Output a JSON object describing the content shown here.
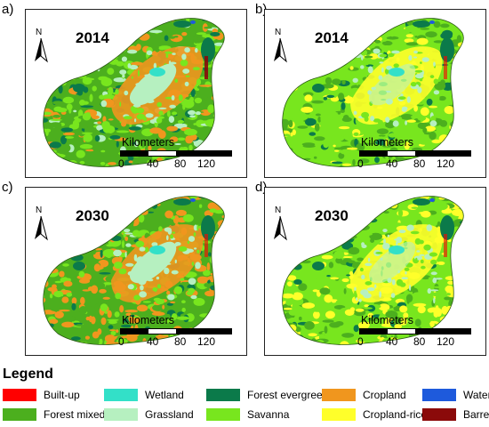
{
  "panels": [
    {
      "label": "a)",
      "year": "2014",
      "variant": "a"
    },
    {
      "label": "b)",
      "year": "2014",
      "variant": "b"
    },
    {
      "label": "c)",
      "year": "2030",
      "variant": "c"
    },
    {
      "label": "d)",
      "year": "2030",
      "variant": "d"
    }
  ],
  "north_label": "N",
  "scalebar": {
    "title": "Kilometers",
    "ticks": [
      "0",
      "40",
      "80",
      "120"
    ]
  },
  "legend": {
    "title": "Legend",
    "items": [
      {
        "label": "Built-up",
        "color": "#ff0000"
      },
      {
        "label": "Wetland",
        "color": "#33e0c8"
      },
      {
        "label": "Forest evergreen",
        "color": "#0b7a4a"
      },
      {
        "label": "Cropland",
        "color": "#f0961e"
      },
      {
        "label": "Water",
        "color": "#1e5adc"
      },
      {
        "label": "Forest mixed",
        "color": "#4caf1e"
      },
      {
        "label": "Grassland",
        "color": "#b6f0c0"
      },
      {
        "label": "Savanna",
        "color": "#78e61e"
      },
      {
        "label": "Cropland-rice",
        "color": "#ffff2a"
      },
      {
        "label": "Barren",
        "color": "#8b0a0a"
      }
    ]
  }
}
